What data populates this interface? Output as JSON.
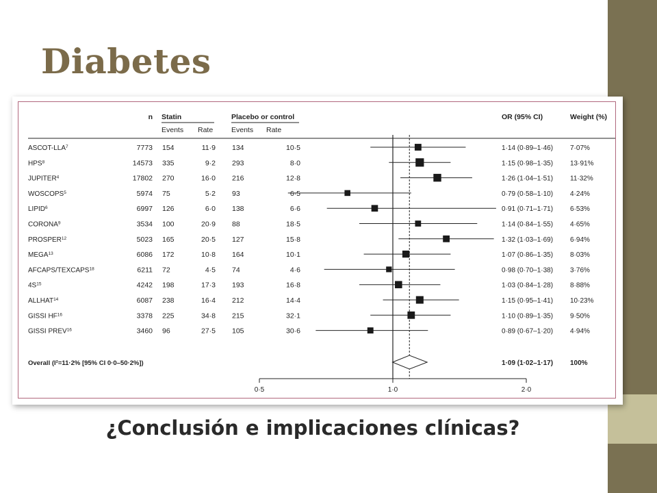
{
  "slide": {
    "title": "Diabetes",
    "subtitle": "¿Conclusión e implicaciones clínicas?",
    "colors": {
      "title": "#7b6b4a",
      "sidebar": "#7a7152",
      "sidebar_accent": "#c5c09a",
      "frame_border": "#b0677c"
    }
  },
  "chart_data": {
    "type": "forest",
    "headers": {
      "n": "n",
      "statin": "Statin",
      "placebo": "Placebo or control",
      "events": "Events",
      "rate": "Rate",
      "or_ci": "OR (95% CI)",
      "weight": "Weight (%)"
    },
    "x_ticks": [
      "0·5",
      "1·0",
      "2·0"
    ],
    "x_tick_values": [
      0.5,
      1.0,
      2.0
    ],
    "x_scale": "log",
    "xlim": [
      0.5,
      2.0
    ],
    "reference_line": 1.0,
    "pooled_line": 1.09,
    "rows": [
      {
        "study": "ASCOT-LLA",
        "sup": "7",
        "n": "7773",
        "statin_events": "154",
        "statin_rate": "11·9",
        "placebo_events": "134",
        "placebo_rate": "10·5",
        "or_text": "1·14 (0·89–1·46)",
        "weight_text": "7·07%",
        "or": 1.14,
        "lo": 0.89,
        "hi": 1.46,
        "weight": 7.07
      },
      {
        "study": "HPS",
        "sup": "8",
        "n": "14573",
        "statin_events": "335",
        "statin_rate": "9·2",
        "placebo_events": "293",
        "placebo_rate": "8·0",
        "or_text": "1·15 (0·98–1·35)",
        "weight_text": "13·91%",
        "or": 1.15,
        "lo": 0.98,
        "hi": 1.35,
        "weight": 13.91
      },
      {
        "study": "JUPITER",
        "sup": "4",
        "n": "17802",
        "statin_events": "270",
        "statin_rate": "16·0",
        "placebo_events": "216",
        "placebo_rate": "12·8",
        "or_text": "1·26 (1·04–1·51)",
        "weight_text": "11·32%",
        "or": 1.26,
        "lo": 1.04,
        "hi": 1.51,
        "weight": 11.32
      },
      {
        "study": "WOSCOPS",
        "sup": "5",
        "n": "5974",
        "statin_events": "75",
        "statin_rate": "5·2",
        "placebo_events": "93",
        "placebo_rate": "6·5",
        "or_text": "0·79 (0·58–1·10)",
        "weight_text": "4·24%",
        "or": 0.79,
        "lo": 0.58,
        "hi": 1.1,
        "weight": 4.24
      },
      {
        "study": "LIPID",
        "sup": "6",
        "n": "6997",
        "statin_events": "126",
        "statin_rate": "6·0",
        "placebo_events": "138",
        "placebo_rate": "6·6",
        "or_text": "0·91 (0·71–1·71)",
        "weight_text": "6·53%",
        "or": 0.91,
        "lo": 0.71,
        "hi": 1.71,
        "weight": 6.53
      },
      {
        "study": "CORONA",
        "sup": "9",
        "n": "3534",
        "statin_events": "100",
        "statin_rate": "20·9",
        "placebo_events": "88",
        "placebo_rate": "18·5",
        "or_text": "1·14 (0·84–1·55)",
        "weight_text": "4·65%",
        "or": 1.14,
        "lo": 0.84,
        "hi": 1.55,
        "weight": 4.65
      },
      {
        "study": "PROSPER",
        "sup": "12",
        "n": "5023",
        "statin_events": "165",
        "statin_rate": "20·5",
        "placebo_events": "127",
        "placebo_rate": "15·8",
        "or_text": "1·32 (1·03–1·69)",
        "weight_text": "6·94%",
        "or": 1.32,
        "lo": 1.03,
        "hi": 1.69,
        "weight": 6.94
      },
      {
        "study": "MEGA",
        "sup": "13",
        "n": "6086",
        "statin_events": "172",
        "statin_rate": "10·8",
        "placebo_events": "164",
        "placebo_rate": "10·1",
        "or_text": "1·07 (0·86–1·35)",
        "weight_text": "8·03%",
        "or": 1.07,
        "lo": 0.86,
        "hi": 1.35,
        "weight": 8.03
      },
      {
        "study": "AFCAPS/TEXCAPS",
        "sup": "18",
        "n": "6211",
        "statin_events": "72",
        "statin_rate": "4·5",
        "placebo_events": "74",
        "placebo_rate": "4·6",
        "or_text": "0·98 (0·70–1·38)",
        "weight_text": "3·76%",
        "or": 0.98,
        "lo": 0.7,
        "hi": 1.38,
        "weight": 3.76
      },
      {
        "study": "4S",
        "sup": "15",
        "n": "4242",
        "statin_events": "198",
        "statin_rate": "17·3",
        "placebo_events": "193",
        "placebo_rate": "16·8",
        "or_text": "1·03 (0·84–1·28)",
        "weight_text": "8·88%",
        "or": 1.03,
        "lo": 0.84,
        "hi": 1.28,
        "weight": 8.88
      },
      {
        "study": "ALLHAT",
        "sup": "14",
        "n": "6087",
        "statin_events": "238",
        "statin_rate": "16·4",
        "placebo_events": "212",
        "placebo_rate": "14·4",
        "or_text": "1·15 (0·95–1·41)",
        "weight_text": "10·23%",
        "or": 1.15,
        "lo": 0.95,
        "hi": 1.41,
        "weight": 10.23
      },
      {
        "study": "GISSI HF",
        "sup": "16",
        "n": "3378",
        "statin_events": "225",
        "statin_rate": "34·8",
        "placebo_events": "215",
        "placebo_rate": "32·1",
        "or_text": "1·10 (0·89–1·35)",
        "weight_text": "9·50%",
        "or": 1.1,
        "lo": 0.89,
        "hi": 1.35,
        "weight": 9.5
      },
      {
        "study": "GISSI PREV",
        "sup": "16",
        "n": "3460",
        "statin_events": "96",
        "statin_rate": "27·5",
        "placebo_events": "105",
        "placebo_rate": "30·6",
        "or_text": "0·89 (0·67–1·20)",
        "weight_text": "4·94%",
        "or": 0.89,
        "lo": 0.67,
        "hi": 1.2,
        "weight": 4.94
      }
    ],
    "overall": {
      "label": "Overall (I²=11·2% [95% CI 0·0–50·2%])",
      "or_text": "1·09 (1·02–1·17)",
      "weight_text": "100%",
      "or": 1.09,
      "lo": 1.02,
      "hi": 1.17
    }
  }
}
